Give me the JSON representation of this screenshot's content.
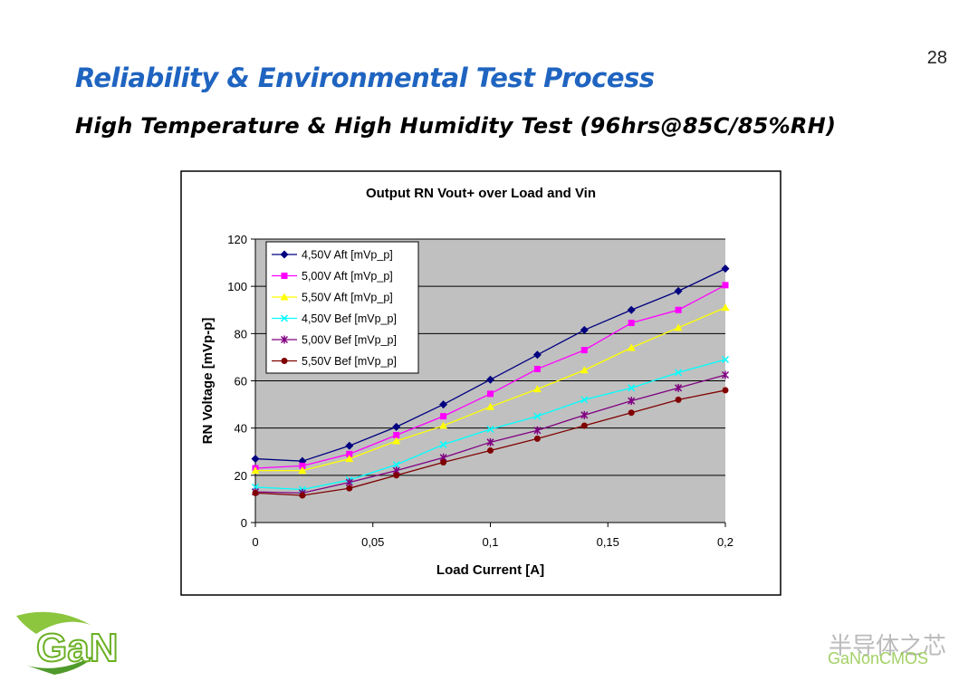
{
  "page_number": "28",
  "title": "Reliability & Environmental Test Process",
  "subtitle": "High Temperature & High Humidity Test (96hrs@85C/85%RH)",
  "logo": "GaN",
  "watermark": {
    "name": "半导体之芯",
    "brand": "GaNonCMOS"
  },
  "chart_data": {
    "type": "line",
    "title": "Output RN Vout+ over Load and Vin",
    "x_label": "Load Current [A]",
    "y_label": "RN Voltage [mVp-p]",
    "x": [
      0,
      0.02,
      0.04,
      0.06,
      0.08,
      0.1,
      0.12,
      0.14,
      0.16,
      0.18,
      0.2
    ],
    "xlim": [
      0,
      0.2
    ],
    "xticks": [
      0,
      {
        "value": 0.05,
        "label": "0,05"
      },
      {
        "value": 0.1,
        "label": "0,1"
      },
      {
        "value": 0.15,
        "label": "0,15"
      },
      {
        "value": 0.2,
        "label": "0,2"
      }
    ],
    "ylim": [
      0,
      120
    ],
    "yticks": [
      0,
      20,
      40,
      60,
      80,
      100,
      120
    ],
    "grid": true,
    "legend": "upper left",
    "series": [
      {
        "name": "4,50V Aft [mVp_p]",
        "color": "#000080",
        "marker": "diamond",
        "values": [
          27,
          26,
          32.5,
          40.5,
          50,
          60.5,
          71,
          81.5,
          90,
          98,
          107.5
        ]
      },
      {
        "name": "5,00V Aft [mVp_p]",
        "color": "#ff00ff",
        "marker": "square",
        "values": [
          23,
          24,
          29,
          37,
          45,
          54.5,
          65,
          73,
          84.5,
          90,
          100.5
        ]
      },
      {
        "name": "5,50V Aft [mVp_p]",
        "color": "#ffff00",
        "marker": "triangle",
        "values": [
          22,
          22,
          27,
          34.5,
          41,
          49,
          56.5,
          64.5,
          74,
          82.5,
          91
        ]
      },
      {
        "name": "4,50V Bef [mVp_p]",
        "color": "#00ffff",
        "marker": "x",
        "values": [
          15,
          14,
          18,
          24.5,
          33,
          39.5,
          45,
          52,
          57,
          63.5,
          69
        ]
      },
      {
        "name": "5,00V Bef [mVp_p]",
        "color": "#800080",
        "marker": "star",
        "values": [
          13,
          12.5,
          17,
          22,
          27.5,
          34,
          39,
          45.5,
          51.5,
          57,
          62.5
        ]
      },
      {
        "name": "5,50V Bef [mVp_p]",
        "color": "#800000",
        "marker": "circle",
        "values": [
          12.5,
          11.5,
          14.5,
          20,
          25.5,
          30.5,
          35.5,
          41,
          46.5,
          52,
          56
        ]
      }
    ]
  }
}
